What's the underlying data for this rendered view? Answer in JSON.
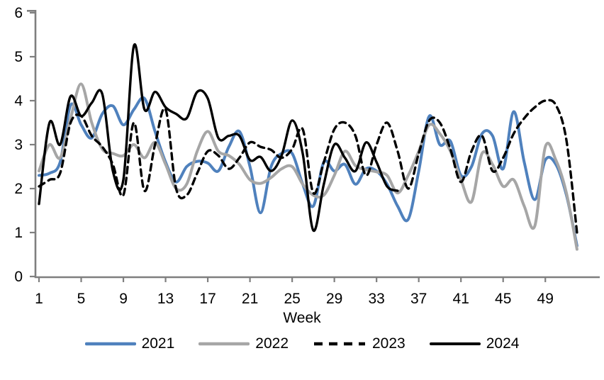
{
  "chart_data": {
    "type": "line",
    "title": "",
    "xlabel": "Week",
    "x_ticks": [
      1,
      5,
      9,
      13,
      17,
      21,
      25,
      29,
      33,
      37,
      41,
      45,
      49
    ],
    "y_ticks": [
      0,
      1,
      2,
      3,
      4,
      5,
      6
    ],
    "xlim": [
      1,
      52
    ],
    "ylim": [
      0,
      6
    ],
    "grid": false,
    "legend_position": "bottom",
    "axis_color": "#7f7f7f",
    "text_color": "#000000",
    "series": [
      {
        "name": "2021",
        "color": "#4F81BD",
        "style": "solid",
        "width": 4,
        "start_week": 1,
        "values": [
          2.3,
          2.35,
          2.6,
          3.9,
          3.45,
          3.15,
          3.7,
          3.88,
          3.45,
          3.8,
          4.05,
          3.3,
          2.6,
          2.15,
          2.5,
          2.62,
          2.58,
          2.4,
          2.95,
          3.3,
          2.5,
          1.45,
          2.5,
          2.8,
          2.8,
          2.1,
          1.6,
          2.6,
          2.4,
          2.55,
          2.1,
          2.45,
          2.4,
          2.1,
          1.6,
          1.3,
          2.4,
          3.65,
          3.0,
          3.08,
          2.3,
          2.5,
          3.25,
          3.2,
          2.45,
          3.75,
          2.6,
          1.75,
          2.65,
          2.55,
          1.85,
          0.7
        ]
      },
      {
        "name": "2022",
        "color": "#A6A6A6",
        "style": "solid",
        "width": 4,
        "start_week": 1,
        "values": [
          2.4,
          3.0,
          2.7,
          3.6,
          4.38,
          3.5,
          2.9,
          2.8,
          2.75,
          3.0,
          2.7,
          3.05,
          2.55,
          2.0,
          2.1,
          2.85,
          3.3,
          2.85,
          2.75,
          2.55,
          2.2,
          2.12,
          2.25,
          2.45,
          2.5,
          2.1,
          1.85,
          1.85,
          2.3,
          2.85,
          2.52,
          2.43,
          2.38,
          2.3,
          1.9,
          2.3,
          2.85,
          3.45,
          3.25,
          2.85,
          2.2,
          1.7,
          2.8,
          2.55,
          2.05,
          2.2,
          1.6,
          1.15,
          2.95,
          2.65,
          1.9,
          0.62
        ]
      },
      {
        "name": "2023",
        "color": "#000000",
        "style": "dashed",
        "width": 3.4,
        "start_week": 1,
        "values": [
          2.05,
          2.2,
          2.35,
          3.5,
          3.65,
          3.2,
          2.95,
          2.55,
          1.85,
          3.5,
          1.95,
          3.0,
          3.8,
          2.0,
          1.85,
          2.35,
          2.85,
          2.75,
          2.45,
          2.7,
          3.05,
          2.95,
          2.88,
          2.7,
          2.9,
          3.35,
          1.9,
          2.6,
          3.35,
          3.5,
          3.2,
          2.3,
          3.0,
          3.5,
          2.85,
          2.0,
          2.8,
          3.55,
          3.5,
          2.9,
          2.15,
          2.85,
          3.2,
          2.4,
          2.7,
          3.25,
          3.6,
          3.85,
          4.0,
          3.9,
          3.1,
          1.0
        ]
      },
      {
        "name": "2024",
        "color": "#000000",
        "style": "solid",
        "width": 3.4,
        "start_week": 1,
        "values": [
          1.65,
          3.5,
          3.0,
          4.1,
          3.65,
          3.95,
          4.15,
          2.4,
          2.2,
          5.25,
          3.8,
          4.2,
          3.85,
          3.7,
          3.6,
          4.2,
          4.05,
          3.15,
          3.2,
          3.2,
          2.65,
          2.72,
          2.4,
          2.75,
          3.55,
          2.8,
          1.05,
          2.1,
          3.0,
          2.7,
          2.4,
          3.05,
          2.6,
          2.05,
          1.95
        ]
      }
    ]
  },
  "legend": {
    "items": [
      {
        "label": "2021"
      },
      {
        "label": "2022"
      },
      {
        "label": "2023"
      },
      {
        "label": "2024"
      }
    ]
  }
}
